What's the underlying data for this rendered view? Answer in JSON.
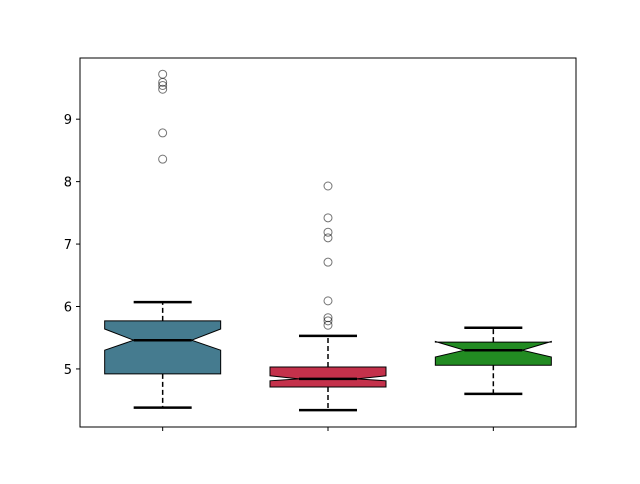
{
  "chart_data": {
    "type": "boxplot",
    "notched": true,
    "title": "",
    "xlabel": "",
    "ylabel": "",
    "ylim": [
      4.07,
      9.98
    ],
    "yticks": [
      5,
      6,
      7,
      8,
      9
    ],
    "grid": false,
    "categories": [
      "",
      "",
      ""
    ],
    "boxes": [
      {
        "color": "#457b8f",
        "whisker_low": 4.38,
        "q1": 4.92,
        "notch_low": 5.3,
        "median": 5.46,
        "notch_high": 5.64,
        "q3": 5.77,
        "whisker_high": 6.07,
        "outliers": [
          9.72,
          9.59,
          9.54,
          9.48,
          8.78,
          8.36
        ]
      },
      {
        "color": "#c4314b",
        "whisker_low": 4.34,
        "q1": 4.71,
        "notch_low": 4.81,
        "median": 4.84,
        "notch_high": 4.89,
        "q3": 5.03,
        "whisker_high": 5.53,
        "outliers": [
          7.93,
          7.42,
          7.19,
          7.1,
          6.71,
          6.09,
          5.82,
          5.77,
          5.7
        ]
      },
      {
        "color": "#228b22",
        "whisker_low": 4.6,
        "q1": 5.06,
        "notch_low": 5.19,
        "median": 5.3,
        "notch_high": 5.44,
        "q3": 5.43,
        "whisker_high": 5.66,
        "outliers": []
      }
    ]
  }
}
